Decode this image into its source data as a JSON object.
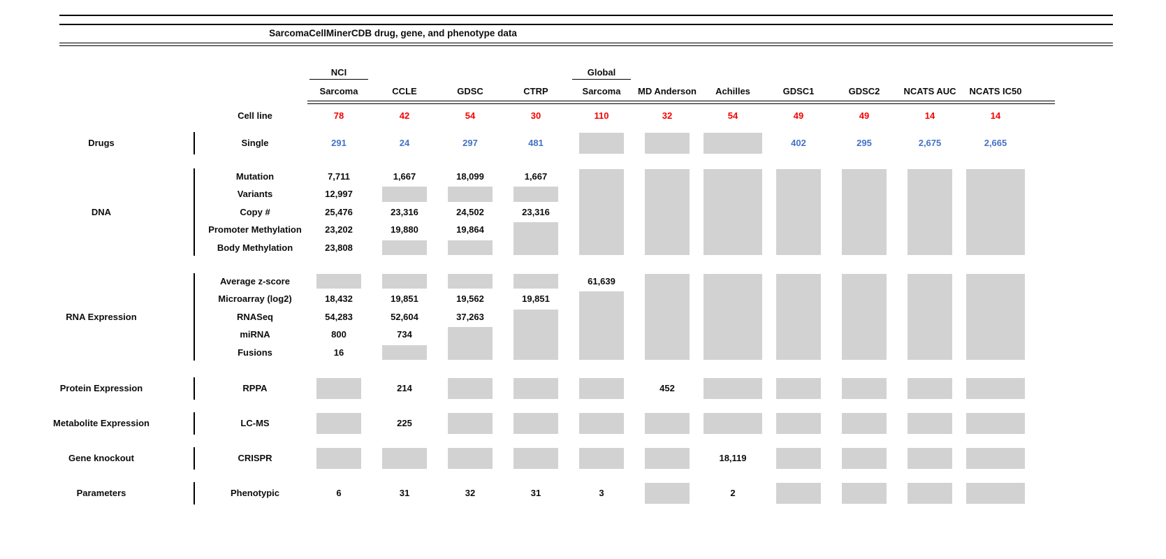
{
  "title": "SarcomaCellMinerCDB drug, gene, and phenotype data",
  "colors": {
    "red": "#f40000",
    "blue": "#4472c4",
    "black": "#0d0d0d",
    "box_gray": "#d2d2d2",
    "rule_black": "#000000"
  },
  "columns": [
    {
      "top": "NCI",
      "label": "Sarcoma"
    },
    {
      "label": "CCLE"
    },
    {
      "label": "GDSC"
    },
    {
      "label": "CTRP"
    },
    {
      "top": "Global",
      "label": "Sarcoma"
    },
    {
      "label": "MD Anderson"
    },
    {
      "label": "Achilles"
    },
    {
      "label": "GDSC1"
    },
    {
      "label": "GDSC2"
    },
    {
      "label": "NCATS AUC"
    },
    {
      "label": "NCATS IC50"
    }
  ],
  "chart_data": {
    "type": "table",
    "title": "SarcomaCellMinerCDB drug, gene, and phenotype data",
    "columns": [
      "NCI Sarcoma",
      "CCLE",
      "GDSC",
      "CTRP",
      "Global Sarcoma",
      "MD Anderson",
      "Achilles",
      "GDSC1",
      "GDSC2",
      "NCATS AUC",
      "NCATS IC50"
    ],
    "null_meaning": "gray box (no value shown)",
    "rows": [
      {
        "group": "",
        "label": "Cell line",
        "color": "red",
        "values": [
          78,
          42,
          54,
          30,
          110,
          32,
          54,
          49,
          49,
          14,
          14
        ]
      },
      {
        "group": "Drugs",
        "label": "Single",
        "color": "blue",
        "values": [
          291,
          24,
          297,
          481,
          null,
          null,
          null,
          402,
          295,
          2675,
          2665
        ]
      },
      {
        "group": "DNA",
        "label": "Mutation",
        "color": "black",
        "values": [
          7711,
          1667,
          18099,
          1667,
          null,
          null,
          null,
          null,
          null,
          null,
          null
        ]
      },
      {
        "group": "DNA",
        "label": "Variants",
        "color": "black",
        "values": [
          12997,
          null,
          null,
          null,
          null,
          null,
          null,
          null,
          null,
          null,
          null
        ]
      },
      {
        "group": "DNA",
        "label": "Copy #",
        "color": "black",
        "values": [
          25476,
          23316,
          24502,
          23316,
          null,
          null,
          null,
          null,
          null,
          null,
          null
        ]
      },
      {
        "group": "DNA",
        "label": "Promoter Methylation",
        "color": "black",
        "values": [
          23202,
          19880,
          19864,
          null,
          null,
          null,
          null,
          null,
          null,
          null,
          null
        ]
      },
      {
        "group": "DNA",
        "label": "Body Methylation",
        "color": "black",
        "values": [
          23808,
          null,
          null,
          null,
          null,
          null,
          null,
          null,
          null,
          null,
          null
        ]
      },
      {
        "group": "RNA Expression",
        "label": "Average z-score",
        "color": "black",
        "values": [
          null,
          null,
          null,
          null,
          61639,
          null,
          null,
          null,
          null,
          null,
          null
        ]
      },
      {
        "group": "RNA Expression",
        "label": "Microarray (log2)",
        "color": "black",
        "values": [
          18432,
          19851,
          19562,
          19851,
          null,
          null,
          null,
          null,
          null,
          null,
          null
        ]
      },
      {
        "group": "RNA Expression",
        "label": "RNASeq",
        "color": "black",
        "values": [
          54283,
          52604,
          37263,
          null,
          null,
          null,
          null,
          null,
          null,
          null,
          null
        ]
      },
      {
        "group": "RNA Expression",
        "label": "miRNA",
        "color": "black",
        "values": [
          800,
          734,
          null,
          null,
          null,
          null,
          null,
          null,
          null,
          null,
          null
        ]
      },
      {
        "group": "RNA Expression",
        "label": "Fusions",
        "color": "black",
        "values": [
          16,
          null,
          null,
          null,
          null,
          null,
          null,
          null,
          null,
          null,
          null
        ]
      },
      {
        "group": "Protein Expression",
        "label": "RPPA",
        "color": "black",
        "values": [
          null,
          214,
          null,
          null,
          null,
          452,
          null,
          null,
          null,
          null,
          null
        ]
      },
      {
        "group": "Metabolite Expression",
        "label": "LC-MS",
        "color": "black",
        "values": [
          null,
          225,
          null,
          null,
          null,
          null,
          null,
          null,
          null,
          null,
          null
        ]
      },
      {
        "group": "Gene knockout",
        "label": "CRISPR",
        "color": "black",
        "values": [
          null,
          null,
          null,
          null,
          null,
          null,
          18119,
          null,
          null,
          null,
          null
        ]
      },
      {
        "group": "Parameters",
        "label": "Phenotypic",
        "color": "black",
        "values": [
          6,
          31,
          32,
          31,
          3,
          null,
          2,
          null,
          null,
          null,
          null
        ]
      }
    ]
  }
}
